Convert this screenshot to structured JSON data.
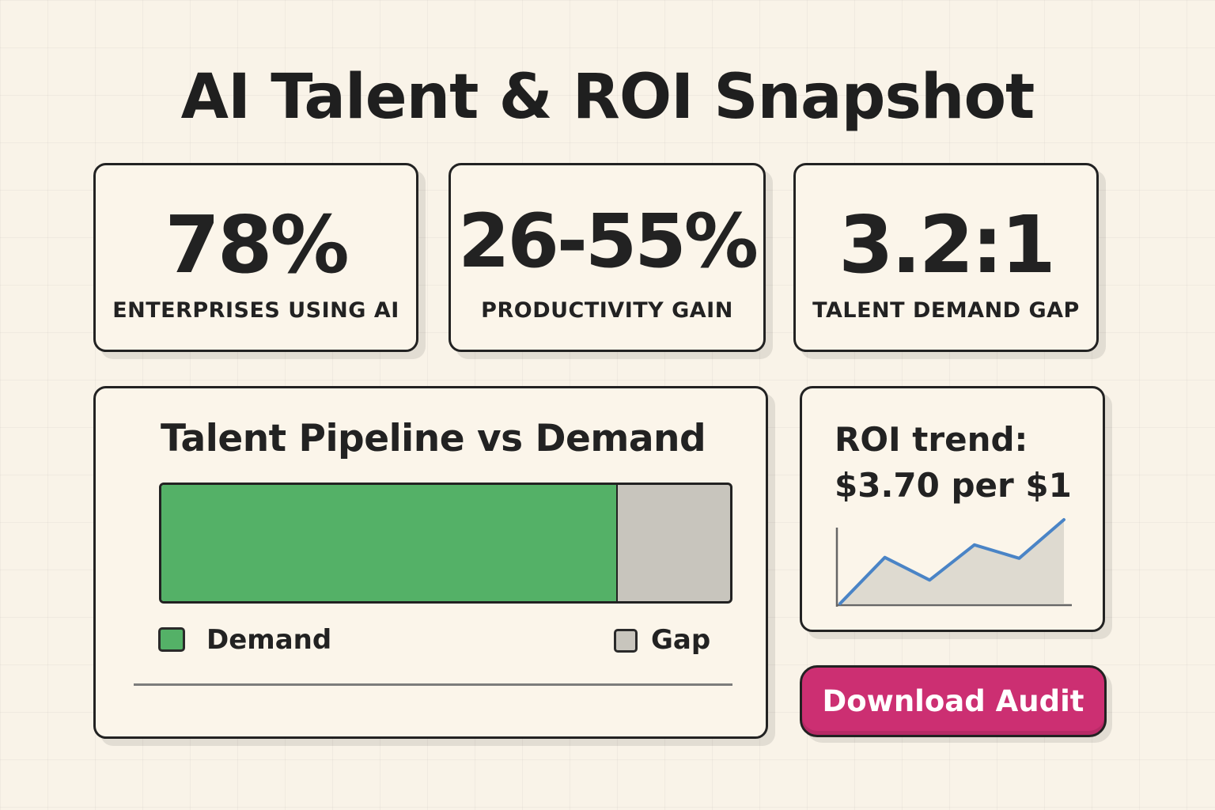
{
  "header": {
    "title": "AI Talent & ROI Snapshot"
  },
  "stats": [
    {
      "value": "78%",
      "label": "ENTERPRISES USING AI"
    },
    {
      "value": "26-55%",
      "label": "PRODUCTIVITY GAIN"
    },
    {
      "value": "3.2:1",
      "label": "TALENT DEMAND GAP"
    }
  ],
  "pipeline": {
    "title": "Talent Pipeline vs Demand",
    "demand_fraction": 0.8,
    "legend": [
      {
        "label": "Demand",
        "color": "#54b167"
      },
      {
        "label": "Gap",
        "color": "#c8c5bd"
      }
    ]
  },
  "roi": {
    "title_line1": "ROI trend:",
    "title_line2": "$3.70 per $1",
    "line_color": "#4a84c6",
    "area_color": "#dedad0",
    "trend": [
      0,
      0.55,
      0.28,
      0.7,
      0.54,
      1.0
    ]
  },
  "actions": {
    "download_label": "Download Audit"
  }
}
